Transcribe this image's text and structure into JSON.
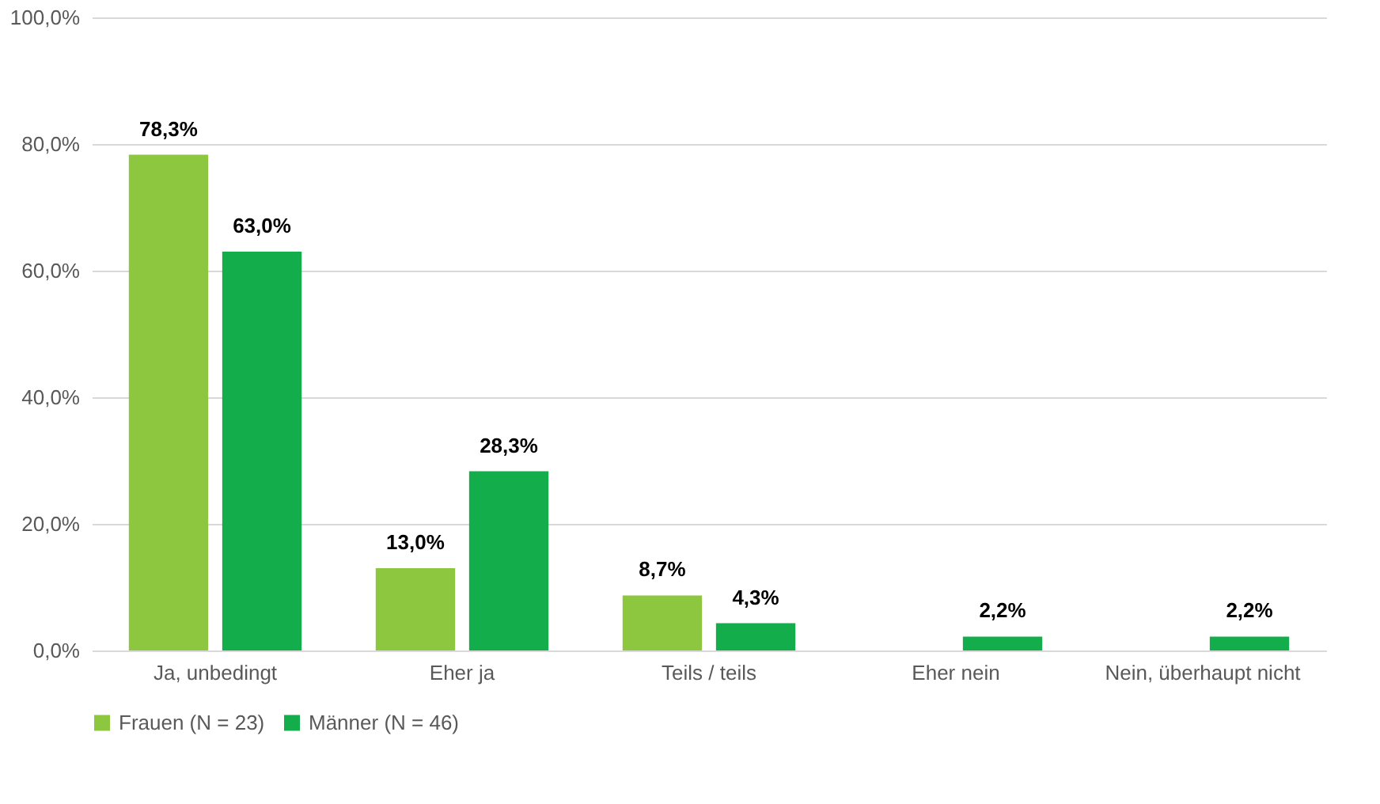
{
  "chart_data": {
    "type": "bar",
    "categories": [
      "Ja, unbedingt",
      "Eher ja",
      "Teils / teils",
      "Eher nein",
      "Nein, überhaupt nicht"
    ],
    "series": [
      {
        "name": "Frauen (N = 23)",
        "color": "#8dc63f",
        "values": [
          78.3,
          13.0,
          8.7,
          null,
          null
        ],
        "value_labels": [
          "78,3%",
          "13,0%",
          "8,7%",
          null,
          null
        ]
      },
      {
        "name": "Männer (N = 46)",
        "color": "#14ad4b",
        "values": [
          63.0,
          28.3,
          4.3,
          2.2,
          2.2
        ],
        "value_labels": [
          "63,0%",
          "28,3%",
          "4,3%",
          "2,2%",
          "2,2%"
        ]
      }
    ],
    "ylim": [
      0,
      100
    ],
    "yticks": [
      {
        "value": 0,
        "label": "0,0%"
      },
      {
        "value": 20,
        "label": "20,0%"
      },
      {
        "value": 40,
        "label": "40,0%"
      },
      {
        "value": 60,
        "label": "60,0%"
      },
      {
        "value": 80,
        "label": "80,0%"
      },
      {
        "value": 100,
        "label": "100,0%"
      }
    ],
    "grid": "y",
    "legend": "bottom"
  }
}
